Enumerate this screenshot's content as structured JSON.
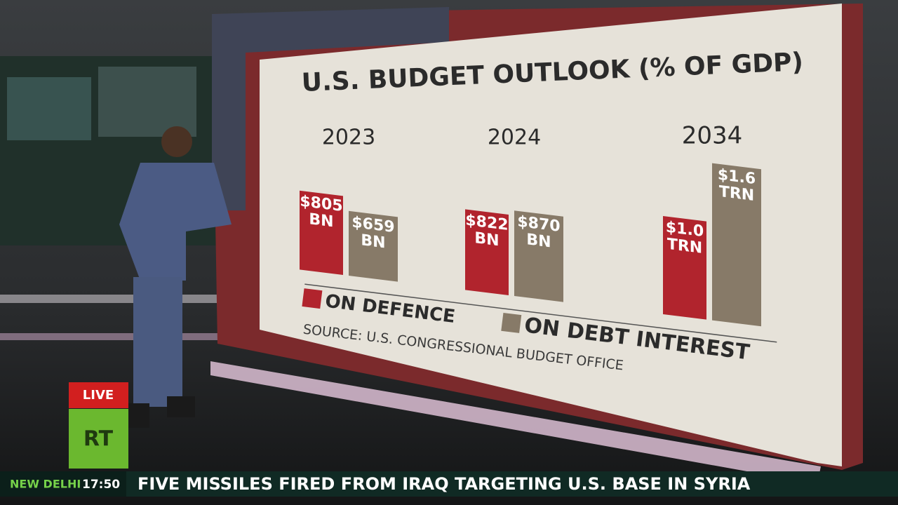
{
  "chart_data": {
    "type": "bar",
    "title": "U.S. BUDGET OUTLOOK (% OF GDP)",
    "categories": [
      "2023",
      "2024",
      "2034"
    ],
    "series": [
      {
        "name": "ON DEFENCE",
        "color": "#b1242d",
        "values": [
          805,
          822,
          1000
        ],
        "value_labels": [
          "$805 BN",
          "$822 BN",
          "$1.0 TRN"
        ]
      },
      {
        "name": "ON DEBT INTEREST",
        "color": "#877a68",
        "values": [
          659,
          870,
          1600
        ],
        "value_labels": [
          "$659 BN",
          "$870 BN",
          "$1.6 TRN"
        ]
      }
    ],
    "source": "SOURCE: U.S. CONGRESSIONAL BUDGET OFFICE"
  },
  "overlay": {
    "live": "LIVE",
    "logo": "RT",
    "city": "NEW DELHI",
    "time": "17:50",
    "headline": "FIVE MISSILES FIRED FROM IRAQ TARGETING U.S. BASE IN SYRIA"
  }
}
